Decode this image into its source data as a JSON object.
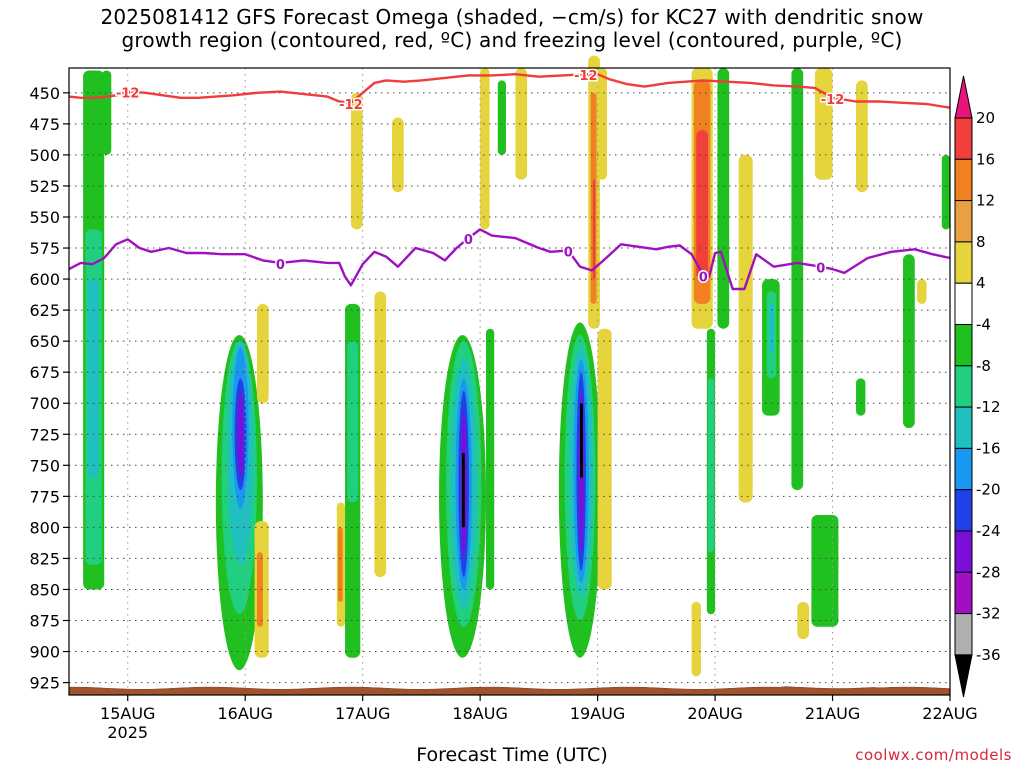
{
  "title": {
    "line1": "2025081412 GFS Forecast Omega (shaded, −cm/s) for KC27 with dendritic snow",
    "line2": "growth region (contoured, red, ºC) and freezing level (contoured, purple, ºC)"
  },
  "xaxis_title": "Forecast Time (UTC)",
  "credit": "coolwx.com/models",
  "chart_data": {
    "type": "heatmap",
    "title": "2025081412 GFS Forecast Omega (shaded, −cm/s) for KC27 with dendritic snow growth region (contoured, red, ºC) and freezing level (contoured, purple, ºC)",
    "xlabel": "Forecast Time (UTC)",
    "ylabel": "",
    "x_ticks": [
      "15AUG",
      "16AUG",
      "17AUG",
      "18AUG",
      "19AUG",
      "20AUG",
      "21AUG",
      "22AUG"
    ],
    "x_tick_sublabel": "2025",
    "x_range_days": [
      14.5,
      22.0
    ],
    "y_ticks": [
      450,
      475,
      500,
      525,
      550,
      575,
      600,
      625,
      650,
      675,
      700,
      725,
      750,
      775,
      800,
      825,
      850,
      875,
      900,
      925
    ],
    "y_range_hpa": [
      430,
      935
    ],
    "grid": true,
    "colorbar": {
      "levels": [
        -36,
        -32,
        -28,
        -24,
        -20,
        -16,
        -12,
        -8,
        -4,
        4,
        8,
        12,
        16,
        20
      ],
      "labels": [
        "20",
        "16",
        "12",
        "8",
        "4",
        "-4",
        "-8",
        "-12",
        "-16",
        "-20",
        "-24",
        "-28",
        "-32",
        "-36"
      ],
      "colors": {
        "above_20": "#e8147d",
        "16_20": "#f0403a",
        "12_16": "#f08020",
        "8_12": "#e8a040",
        "4_8": "#e6d43c",
        "-4_4": "#ffffff",
        "-8_-4": "#20c020",
        "-12_-8": "#20d080",
        "-16_-12": "#20c0c0",
        "-20_-16": "#1898f0",
        "-24_-20": "#2040e8",
        "-28_-24": "#7a10d8",
        "-32_-28": "#a010c0",
        "-36_-32": "#b0b0b0",
        "below_-36": "#000000"
      }
    },
    "series": [
      {
        "name": "-12",
        "color": "#f03c3c",
        "x": [
          14.5,
          14.6,
          14.75,
          14.9,
          15.0,
          15.15,
          15.3,
          15.45,
          15.6,
          15.75,
          15.9,
          16.1,
          16.3,
          16.5,
          16.7,
          16.8,
          16.9,
          17.0,
          17.1,
          17.2,
          17.35,
          17.5,
          17.7,
          17.9,
          18.1,
          18.3,
          18.5,
          18.7,
          18.9,
          19.0,
          19.1,
          19.25,
          19.4,
          19.6,
          19.75,
          19.9,
          20.1,
          20.3,
          20.5,
          20.7,
          20.85,
          21.0,
          21.2,
          21.4,
          21.6,
          21.8,
          22.0
        ],
        "y": [
          453,
          454,
          454,
          452,
          449,
          450,
          452,
          454,
          454,
          453,
          452,
          450,
          449,
          451,
          453,
          457,
          458,
          450,
          442,
          440,
          441,
          440,
          438,
          436,
          436,
          435,
          437,
          436,
          435,
          435,
          439,
          443,
          445,
          442,
          441,
          440,
          441,
          442,
          444,
          445,
          446,
          454,
          457,
          457,
          458,
          459,
          462
        ]
      },
      {
        "name": "0",
        "color": "#a010c0",
        "x": [
          14.5,
          14.6,
          14.7,
          14.8,
          14.9,
          15.0,
          15.1,
          15.2,
          15.35,
          15.5,
          15.65,
          15.8,
          15.9,
          16.0,
          16.15,
          16.3,
          16.5,
          16.7,
          16.8,
          16.85,
          16.9,
          17.0,
          17.1,
          17.2,
          17.3,
          17.45,
          17.6,
          17.7,
          17.8,
          17.9,
          18.0,
          18.1,
          18.3,
          18.5,
          18.6,
          18.75,
          18.85,
          18.95,
          19.05,
          19.2,
          19.35,
          19.5,
          19.6,
          19.7,
          19.8,
          19.9,
          19.95,
          20.0,
          20.05,
          20.15,
          20.25,
          20.35,
          20.5,
          20.7,
          20.9,
          21.0,
          21.1,
          21.3,
          21.5,
          21.7,
          21.85,
          22.0
        ],
        "y": [
          592,
          587,
          588,
          583,
          572,
          568,
          575,
          578,
          575,
          579,
          579,
          580,
          580,
          580,
          585,
          587,
          585,
          587,
          587,
          598,
          605,
          588,
          578,
          582,
          590,
          575,
          579,
          585,
          575,
          567,
          560,
          565,
          567,
          575,
          578,
          577,
          590,
          593,
          585,
          572,
          574,
          576,
          574,
          573,
          580,
          597,
          598,
          579,
          578,
          608,
          608,
          580,
          590,
          587,
          590,
          592,
          595,
          583,
          578,
          576,
          580,
          583
        ]
      }
    ]
  }
}
